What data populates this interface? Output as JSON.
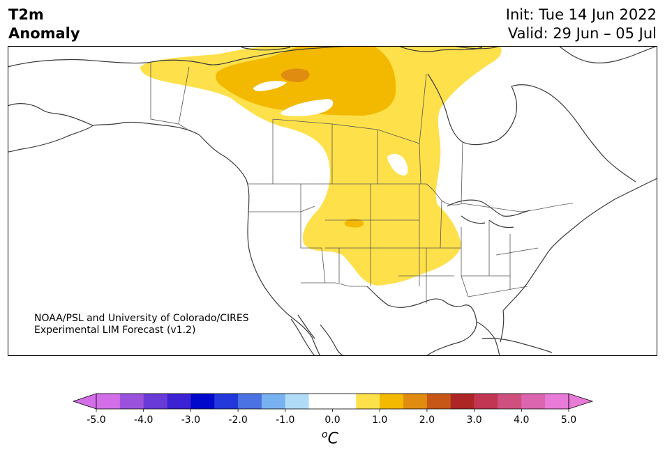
{
  "header": {
    "title_line1": "T2m",
    "title_line2": "Anomaly",
    "init_label": "Init: Tue 14 Jun 2022",
    "valid_label": "Valid: 29 Jun – 05 Jul"
  },
  "credit": {
    "line1": "NOAA/PSL and University of Colorado/CIRES",
    "line2": "Experimental LIM Forecast (v1.2)"
  },
  "colorbar": {
    "ticks": [
      "-5.0",
      "-4.0",
      "-3.0",
      "-2.0",
      "-1.0",
      "0.0",
      "1.0",
      "2.0",
      "3.0",
      "4.0",
      "5.0"
    ],
    "colors": [
      "#d36ee8",
      "#9a52dc",
      "#6a3ad8",
      "#3c22d2",
      "#0008cc",
      "#2238da",
      "#4a72e2",
      "#78b2f0",
      "#b0dcf8",
      "#ffffff",
      "#ffffff",
      "#fee04a",
      "#f3b800",
      "#df8c10",
      "#c75716",
      "#ae2525",
      "#c33653",
      "#cf507f",
      "#dc65b0",
      "#e87ad8"
    ],
    "under_color": "#d36ee8",
    "over_color": "#e87ad8",
    "unit_base": "C",
    "unit_sup": "o"
  },
  "map": {
    "ocean_color": "#ffffff",
    "anomaly_colors": {
      "plus_0_5": "#fee04a",
      "plus_1_0": "#f3b800",
      "plus_1_5": "#df8c10"
    }
  }
}
